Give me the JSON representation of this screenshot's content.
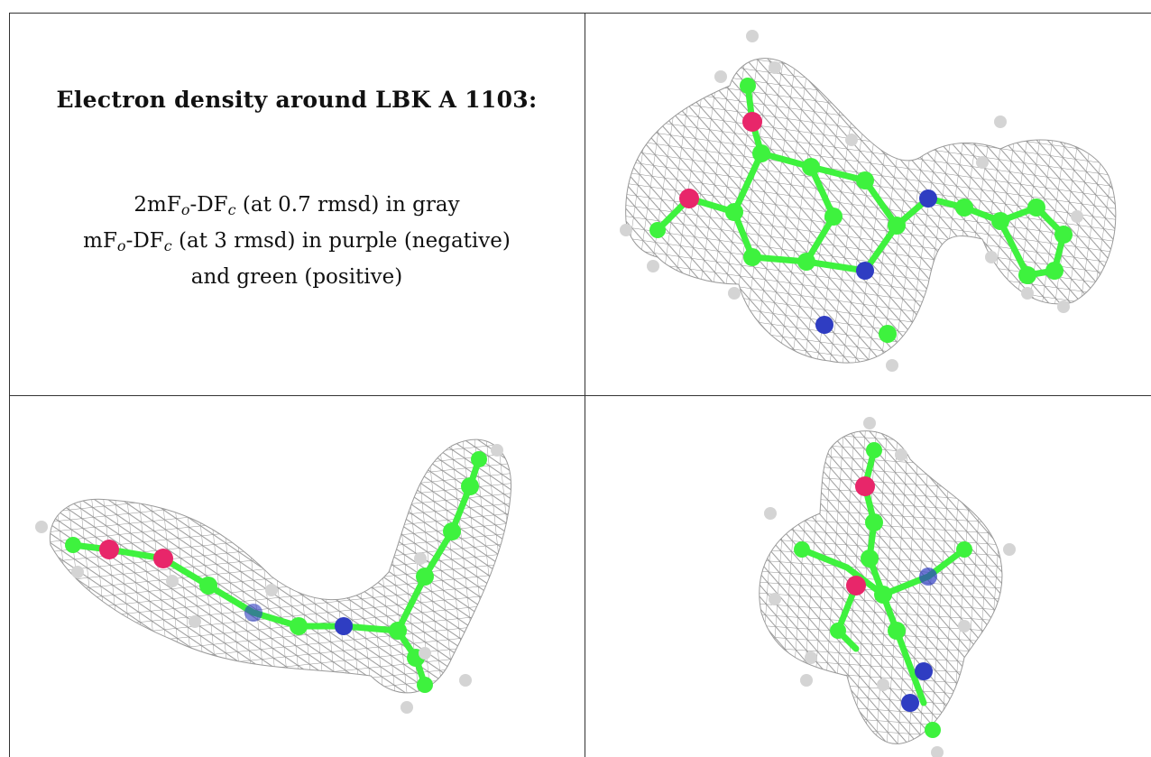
{
  "caption": {
    "title": "Electron density around LBK A 1103:",
    "line1_pre": "2mF",
    "line1_sub1": "o",
    "line1_mid": "-DF",
    "line1_sub2": "c",
    "line1_post": " (at 0.7 rmsd) in gray",
    "line2_pre": "mF",
    "line2_sub1": "o",
    "line2_mid": "-DF",
    "line2_sub2": "c",
    "line2_post": " (at 3 rmsd) in purple (negative)",
    "line3": "and green (positive)"
  },
  "colors": {
    "mesh": "#8f8f8f",
    "carbon": "#3ef23e",
    "oxygen": "#e8266a",
    "nitrogen": "#2f3dc2",
    "hydrogen": "#d4d4d4",
    "border": "#333333"
  },
  "panels": [
    {
      "view": "front-view"
    },
    {
      "view": "side-view"
    },
    {
      "view": "end-on-view"
    }
  ]
}
